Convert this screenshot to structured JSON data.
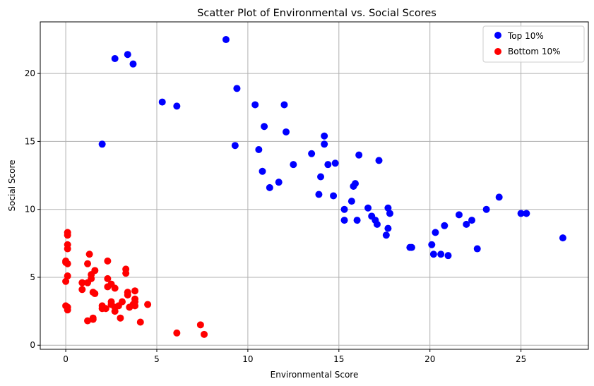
{
  "chart_data": {
    "type": "scatter",
    "title": "Scatter Plot of Environmental vs. Social Scores",
    "xlabel": "Environmental Score",
    "ylabel": "Social Score",
    "xlim": [
      -1.4,
      28.7
    ],
    "ylim": [
      -0.3,
      23.8
    ],
    "xticks": [
      0,
      5,
      10,
      15,
      20,
      25
    ],
    "yticks": [
      0,
      5,
      10,
      15,
      20
    ],
    "grid": true,
    "legend_position": "top-right",
    "series": [
      {
        "name": "Top 10%",
        "color": "#0000ff",
        "points": [
          [
            2.7,
            21.1
          ],
          [
            3.4,
            21.4
          ],
          [
            3.7,
            20.7
          ],
          [
            8.8,
            22.5
          ],
          [
            2.0,
            14.8
          ],
          [
            5.3,
            17.9
          ],
          [
            6.1,
            17.6
          ],
          [
            9.3,
            14.7
          ],
          [
            9.4,
            18.9
          ],
          [
            10.4,
            17.7
          ],
          [
            10.6,
            14.4
          ],
          [
            10.8,
            12.8
          ],
          [
            10.9,
            16.1
          ],
          [
            11.2,
            11.6
          ],
          [
            11.7,
            12.0
          ],
          [
            12.0,
            17.7
          ],
          [
            12.1,
            15.7
          ],
          [
            12.5,
            13.3
          ],
          [
            13.5,
            14.1
          ],
          [
            13.9,
            11.1
          ],
          [
            14.0,
            12.4
          ],
          [
            14.2,
            14.8
          ],
          [
            14.2,
            15.4
          ],
          [
            14.4,
            13.3
          ],
          [
            14.7,
            11.0
          ],
          [
            14.8,
            13.4
          ],
          [
            15.3,
            10.0
          ],
          [
            15.3,
            9.2
          ],
          [
            15.7,
            10.6
          ],
          [
            15.8,
            11.7
          ],
          [
            15.9,
            11.9
          ],
          [
            16.0,
            9.2
          ],
          [
            16.1,
            14.0
          ],
          [
            16.6,
            10.1
          ],
          [
            16.8,
            9.5
          ],
          [
            17.0,
            9.2
          ],
          [
            17.1,
            8.9
          ],
          [
            17.2,
            13.6
          ],
          [
            17.6,
            8.1
          ],
          [
            17.7,
            8.6
          ],
          [
            17.7,
            10.1
          ],
          [
            17.8,
            9.7
          ],
          [
            18.9,
            7.2
          ],
          [
            19.0,
            7.2
          ],
          [
            20.1,
            7.4
          ],
          [
            20.2,
            6.7
          ],
          [
            20.3,
            8.3
          ],
          [
            20.6,
            6.7
          ],
          [
            20.8,
            8.8
          ],
          [
            21.0,
            6.6
          ],
          [
            21.6,
            9.6
          ],
          [
            22.0,
            8.9
          ],
          [
            22.3,
            9.2
          ],
          [
            22.6,
            7.1
          ],
          [
            23.1,
            10.0
          ],
          [
            23.8,
            10.9
          ],
          [
            25.0,
            9.7
          ],
          [
            25.3,
            9.7
          ],
          [
            27.3,
            7.9
          ]
        ]
      },
      {
        "name": "Bottom 10%",
        "color": "#ff0000",
        "points": [
          [
            0.1,
            8.3
          ],
          [
            0.1,
            8.1
          ],
          [
            0.1,
            7.4
          ],
          [
            0.1,
            7.1
          ],
          [
            0.0,
            6.2
          ],
          [
            0.1,
            6.0
          ],
          [
            0.0,
            6.1
          ],
          [
            0.1,
            5.1
          ],
          [
            0.0,
            4.7
          ],
          [
            0.0,
            2.9
          ],
          [
            0.1,
            2.8
          ],
          [
            0.1,
            2.6
          ],
          [
            0.9,
            4.6
          ],
          [
            0.9,
            4.1
          ],
          [
            1.2,
            6.0
          ],
          [
            1.3,
            6.7
          ],
          [
            1.2,
            4.6
          ],
          [
            1.4,
            4.9
          ],
          [
            1.4,
            5.2
          ],
          [
            1.6,
            5.5
          ],
          [
            1.5,
            3.9
          ],
          [
            1.6,
            3.8
          ],
          [
            1.2,
            1.8
          ],
          [
            1.5,
            1.9
          ],
          [
            1.5,
            2.0
          ],
          [
            2.0,
            2.9
          ],
          [
            2.0,
            2.7
          ],
          [
            2.2,
            2.7
          ],
          [
            2.3,
            6.2
          ],
          [
            2.3,
            4.9
          ],
          [
            2.3,
            4.3
          ],
          [
            2.5,
            4.5
          ],
          [
            2.5,
            3.2
          ],
          [
            2.5,
            3.0
          ],
          [
            2.7,
            2.5
          ],
          [
            2.7,
            2.8
          ],
          [
            2.7,
            4.2
          ],
          [
            2.9,
            2.9
          ],
          [
            3.0,
            2.0
          ],
          [
            3.1,
            3.2
          ],
          [
            3.3,
            5.6
          ],
          [
            3.3,
            5.3
          ],
          [
            3.4,
            3.9
          ],
          [
            3.4,
            3.7
          ],
          [
            3.5,
            2.8
          ],
          [
            3.7,
            3.0
          ],
          [
            3.8,
            3.4
          ],
          [
            3.8,
            3.2
          ],
          [
            3.8,
            4.0
          ],
          [
            3.8,
            2.9
          ],
          [
            4.1,
            1.7
          ],
          [
            4.5,
            3.0
          ],
          [
            6.1,
            0.9
          ],
          [
            7.4,
            1.5
          ],
          [
            7.6,
            0.8
          ]
        ]
      }
    ]
  }
}
